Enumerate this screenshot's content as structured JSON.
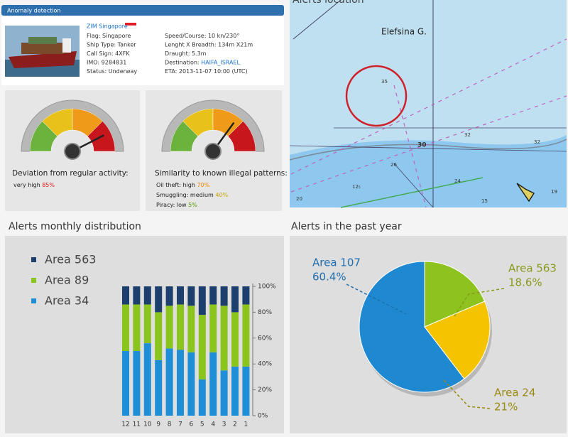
{
  "header": {
    "title": "Anomaly detection"
  },
  "ship": {
    "name": "ZIM Singapore",
    "fields_left": [
      {
        "label": "Flag:",
        "value": "Singapore"
      },
      {
        "label": "Ship Type:",
        "value": "Tanker"
      },
      {
        "label": "Call Sign:",
        "value": "4XFK"
      },
      {
        "label": "IMO:",
        "value": "9284831"
      },
      {
        "label": "Status:",
        "value": "Underway"
      }
    ],
    "fields_right": [
      {
        "label": "Speed/Course:",
        "value": "10 kn/230°"
      },
      {
        "label": "Lenght X Breadth:",
        "value": "134m X21m"
      },
      {
        "label": "Draught:",
        "value": "5.3m"
      },
      {
        "label": "Destination:",
        "value": "HAIFA_ISRAEL"
      },
      {
        "label": "ETA:",
        "value": "2013-11-07 10:00 (UTC)"
      }
    ]
  },
  "gauges": [
    {
      "title": "Deviation from regular activity:",
      "range": [
        0,
        100
      ],
      "needle": 85,
      "items": [
        {
          "label": "very high",
          "value": "85%",
          "color": "#e0201b"
        }
      ]
    },
    {
      "title": "Similarity to known illegal patterns:",
      "range": [
        0,
        100
      ],
      "needle": 70,
      "items": [
        {
          "label": "Oil theft: high",
          "value": "70%",
          "color": "#f08a00"
        },
        {
          "label": "Smuggling: medium",
          "value": "40%",
          "color": "#c8a400"
        },
        {
          "label": "Piracy: low",
          "value": "5%",
          "color": "#5aa000"
        }
      ]
    }
  ],
  "map": {
    "title": "Alerts location",
    "place": "Elefsina G.",
    "soundings": [
      "35",
      "30",
      "32",
      "32",
      "26",
      "24",
      "12₅",
      "15",
      "19",
      "20"
    ]
  },
  "chart_data": [
    {
      "type": "bar",
      "stacked": true,
      "title": "Alerts monthly distribution",
      "categories": [
        "12",
        "11",
        "10",
        "9",
        "8",
        "7",
        "6",
        "5",
        "4",
        "3",
        "2",
        "1"
      ],
      "series": [
        {
          "name": "Area 563",
          "color": "#1d3f6e",
          "values": [
            14,
            14,
            14,
            20,
            15,
            14,
            15,
            22,
            14,
            15,
            20,
            14
          ]
        },
        {
          "name": "Area 89",
          "color": "#8cc41e",
          "values": [
            36,
            36,
            30,
            37,
            33,
            35,
            36,
            50,
            37,
            50,
            42,
            48
          ]
        },
        {
          "name": "Area 34",
          "color": "#1e8fd6",
          "values": [
            50,
            50,
            56,
            43,
            52,
            51,
            49,
            28,
            49,
            35,
            38,
            38
          ]
        }
      ],
      "ylim": [
        0,
        100
      ],
      "yticks": [
        {
          "value": 0,
          "label": "0%"
        },
        {
          "value": 20,
          "label": "20%"
        },
        {
          "value": 40,
          "label": "40%"
        },
        {
          "value": 60,
          "label": "60%"
        },
        {
          "value": 80,
          "label": "80%"
        },
        {
          "value": 100,
          "label": "100%"
        }
      ]
    },
    {
      "type": "pie",
      "title": "Alerts in the past year",
      "categories": [
        "Area 107",
        "Area 563",
        "Area 24"
      ],
      "values": [
        60.4,
        18.6,
        21
      ],
      "value_labels": [
        "60.4%",
        "18.6%",
        "21%"
      ],
      "colors": [
        "#1e88d0",
        "#8dc21f",
        "#f5c400"
      ],
      "label_colors": [
        "#1f6fb0",
        "#8a9a1a",
        "#9a8a10"
      ]
    }
  ]
}
